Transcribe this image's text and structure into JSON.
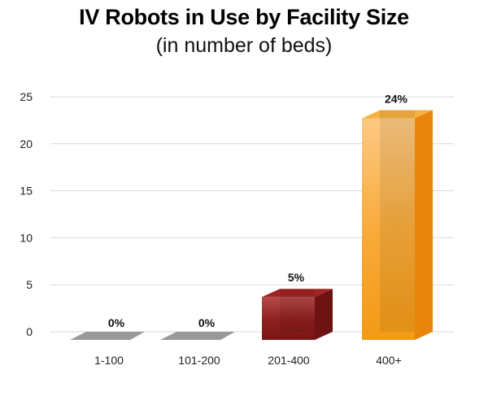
{
  "chart_data": {
    "type": "bar",
    "title": "IV Robots in Use by Facility Size",
    "subtitle": "(in number of beds)",
    "categories": [
      "1-100",
      "101-200",
      "201-400",
      "400+"
    ],
    "values": [
      0,
      0,
      5,
      24
    ],
    "data_labels": [
      "0%",
      "0%",
      "5%",
      "24%"
    ],
    "yticks": [
      "0",
      "5",
      "10",
      "15",
      "20",
      "25"
    ],
    "ylim": [
      0,
      25
    ],
    "xlabel": "",
    "ylabel": "",
    "grid": true,
    "colors": {
      "zero_bar": "#999999",
      "bar_201_400": "#8b1c1c",
      "bar_400_plus": "#f5a21d",
      "grid": "#d9d9d9"
    }
  }
}
